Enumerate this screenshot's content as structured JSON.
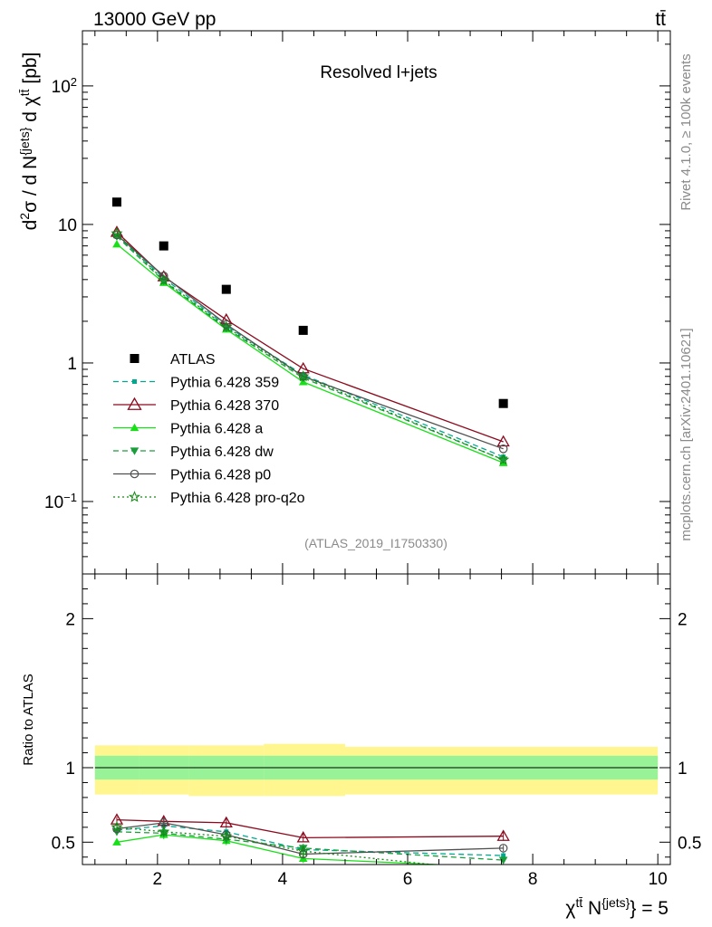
{
  "header": {
    "energy_label": "13000 GeV pp",
    "process_label": "tt̄"
  },
  "side_labels": {
    "rivet": "Rivet 4.1.0, ≥ 100k events",
    "mcplots": "mcplots.cern.ch [arXiv:2401.10621]"
  },
  "chart_data": [
    {
      "type": "line",
      "title": "Resolved l+jets",
      "analysis_id": "(ATLAS_2019_I1750330)",
      "ylabel": "d²σ / d N^{jets} dχ^{tt̄} [pb]",
      "xlabel": "χ^{tt̄} N^{jets} = 5",
      "yscale": "log",
      "ylim": [
        0.03,
        250
      ],
      "xlim": [
        0.8,
        10.2
      ],
      "y_ticks": [
        {
          "value": 0.1,
          "label": "10",
          "exp": "−1"
        },
        {
          "value": 1,
          "label": "1",
          "exp": ""
        },
        {
          "value": 10,
          "label": "10",
          "exp": ""
        },
        {
          "value": 100,
          "label": "10",
          "exp": "2"
        }
      ],
      "legend_position": "middle-left",
      "x": [
        1.35,
        2.1,
        3.1,
        4.33,
        7.53
      ],
      "data": {
        "name": "ATLAS",
        "values": [
          14.5,
          7.0,
          3.4,
          1.72,
          0.51
        ],
        "bins": [
          [
            1.0,
            1.7
          ],
          [
            1.7,
            2.5
          ],
          [
            2.5,
            3.7
          ],
          [
            3.7,
            5.0
          ],
          [
            5.0,
            10.0
          ]
        ]
      },
      "series": [
        {
          "name": "Pythia 6.428 359",
          "color": "#00a88f",
          "dash": "6,4",
          "marker": "square-small",
          "values": [
            8.3,
            4.1,
            1.85,
            0.82,
            0.21
          ]
        },
        {
          "name": "Pythia 6.428 370",
          "color": "#8b0a1e",
          "dash": "",
          "marker": "triangle-open",
          "values": [
            8.8,
            4.2,
            2.05,
            0.91,
            0.27
          ]
        },
        {
          "name": "Pythia 6.428 a",
          "color": "#18e018",
          "dash": "",
          "marker": "triangle-filled",
          "values": [
            7.2,
            3.8,
            1.75,
            0.73,
            0.19
          ]
        },
        {
          "name": "Pythia 6.428 dw",
          "color": "#1a9e3c",
          "dash": "6,4",
          "marker": "triangle-down",
          "values": [
            8.2,
            3.9,
            1.78,
            0.78,
            0.2
          ]
        },
        {
          "name": "Pythia 6.428 p0",
          "color": "#505050",
          "dash": "",
          "marker": "circle-open",
          "values": [
            8.4,
            4.25,
            1.9,
            0.8,
            0.24
          ]
        },
        {
          "name": "Pythia 6.428 pro-q2o",
          "color": "#138a13",
          "dash": "2,3",
          "marker": "star",
          "values": [
            8.6,
            3.95,
            1.82,
            0.8,
            0.2
          ]
        }
      ]
    },
    {
      "type": "line",
      "ylabel": "Ratio to ATLAS",
      "ylim": [
        0.35,
        2.3
      ],
      "y_ticks": [
        {
          "value": 0.5,
          "label": "0.5"
        },
        {
          "value": 1,
          "label": "1"
        },
        {
          "value": 2,
          "label": "2"
        }
      ],
      "x_ticks": [
        {
          "value": 2,
          "label": "2"
        },
        {
          "value": 4,
          "label": "4"
        },
        {
          "value": 6,
          "label": "6"
        },
        {
          "value": 8,
          "label": "8"
        },
        {
          "value": 10,
          "label": "10"
        }
      ],
      "reference": 1,
      "band_inner": [
        {
          "x0": 1.0,
          "x1": 1.7,
          "lo": 0.92,
          "hi": 1.08
        },
        {
          "x0": 1.7,
          "x1": 2.5,
          "lo": 0.92,
          "hi": 1.08
        },
        {
          "x0": 2.5,
          "x1": 3.7,
          "lo": 0.92,
          "hi": 1.08
        },
        {
          "x0": 3.7,
          "x1": 5.0,
          "lo": 0.92,
          "hi": 1.08
        },
        {
          "x0": 5.0,
          "x1": 10.0,
          "lo": 0.92,
          "hi": 1.08
        }
      ],
      "band_outer": [
        {
          "x0": 1.0,
          "x1": 1.7,
          "lo": 0.82,
          "hi": 1.15
        },
        {
          "x0": 1.7,
          "x1": 2.5,
          "lo": 0.82,
          "hi": 1.15
        },
        {
          "x0": 2.5,
          "x1": 3.7,
          "lo": 0.81,
          "hi": 1.15
        },
        {
          "x0": 3.7,
          "x1": 5.0,
          "lo": 0.81,
          "hi": 1.16
        },
        {
          "x0": 5.0,
          "x1": 10.0,
          "lo": 0.82,
          "hi": 1.14
        }
      ],
      "x": [
        1.35,
        2.1,
        3.1,
        4.33,
        7.53
      ],
      "series": [
        {
          "name": "Pythia 6.428 359",
          "values": [
            0.58,
            0.61,
            0.57,
            0.45,
            0.41
          ],
          "err": [
            0.02,
            0.03,
            0.03,
            0.03,
            0.02
          ]
        },
        {
          "name": "Pythia 6.428 370",
          "values": [
            0.65,
            0.64,
            0.63,
            0.53,
            0.54
          ],
          "err": [
            0.02,
            0.03,
            0.03,
            0.03,
            0.03
          ]
        },
        {
          "name": "Pythia 6.428 a",
          "values": [
            0.5,
            0.55,
            0.51,
            0.39,
            0.33
          ],
          "err": [
            0.02,
            0.03,
            0.03,
            0.03,
            0.02
          ]
        },
        {
          "name": "Pythia 6.428 dw",
          "values": [
            0.57,
            0.56,
            0.52,
            0.46,
            0.38
          ],
          "err": [
            0.02,
            0.03,
            0.03,
            0.03,
            0.02
          ]
        },
        {
          "name": "Pythia 6.428 p0",
          "values": [
            0.59,
            0.63,
            0.55,
            0.42,
            0.46
          ],
          "err": [
            0.02,
            0.03,
            0.03,
            0.03,
            0.02
          ]
        },
        {
          "name": "Pythia 6.428 pro-q2o",
          "values": [
            0.6,
            0.57,
            0.54,
            0.44,
            0.3
          ],
          "err": [
            0.02,
            0.03,
            0.03,
            0.03,
            0.02
          ]
        }
      ]
    }
  ]
}
